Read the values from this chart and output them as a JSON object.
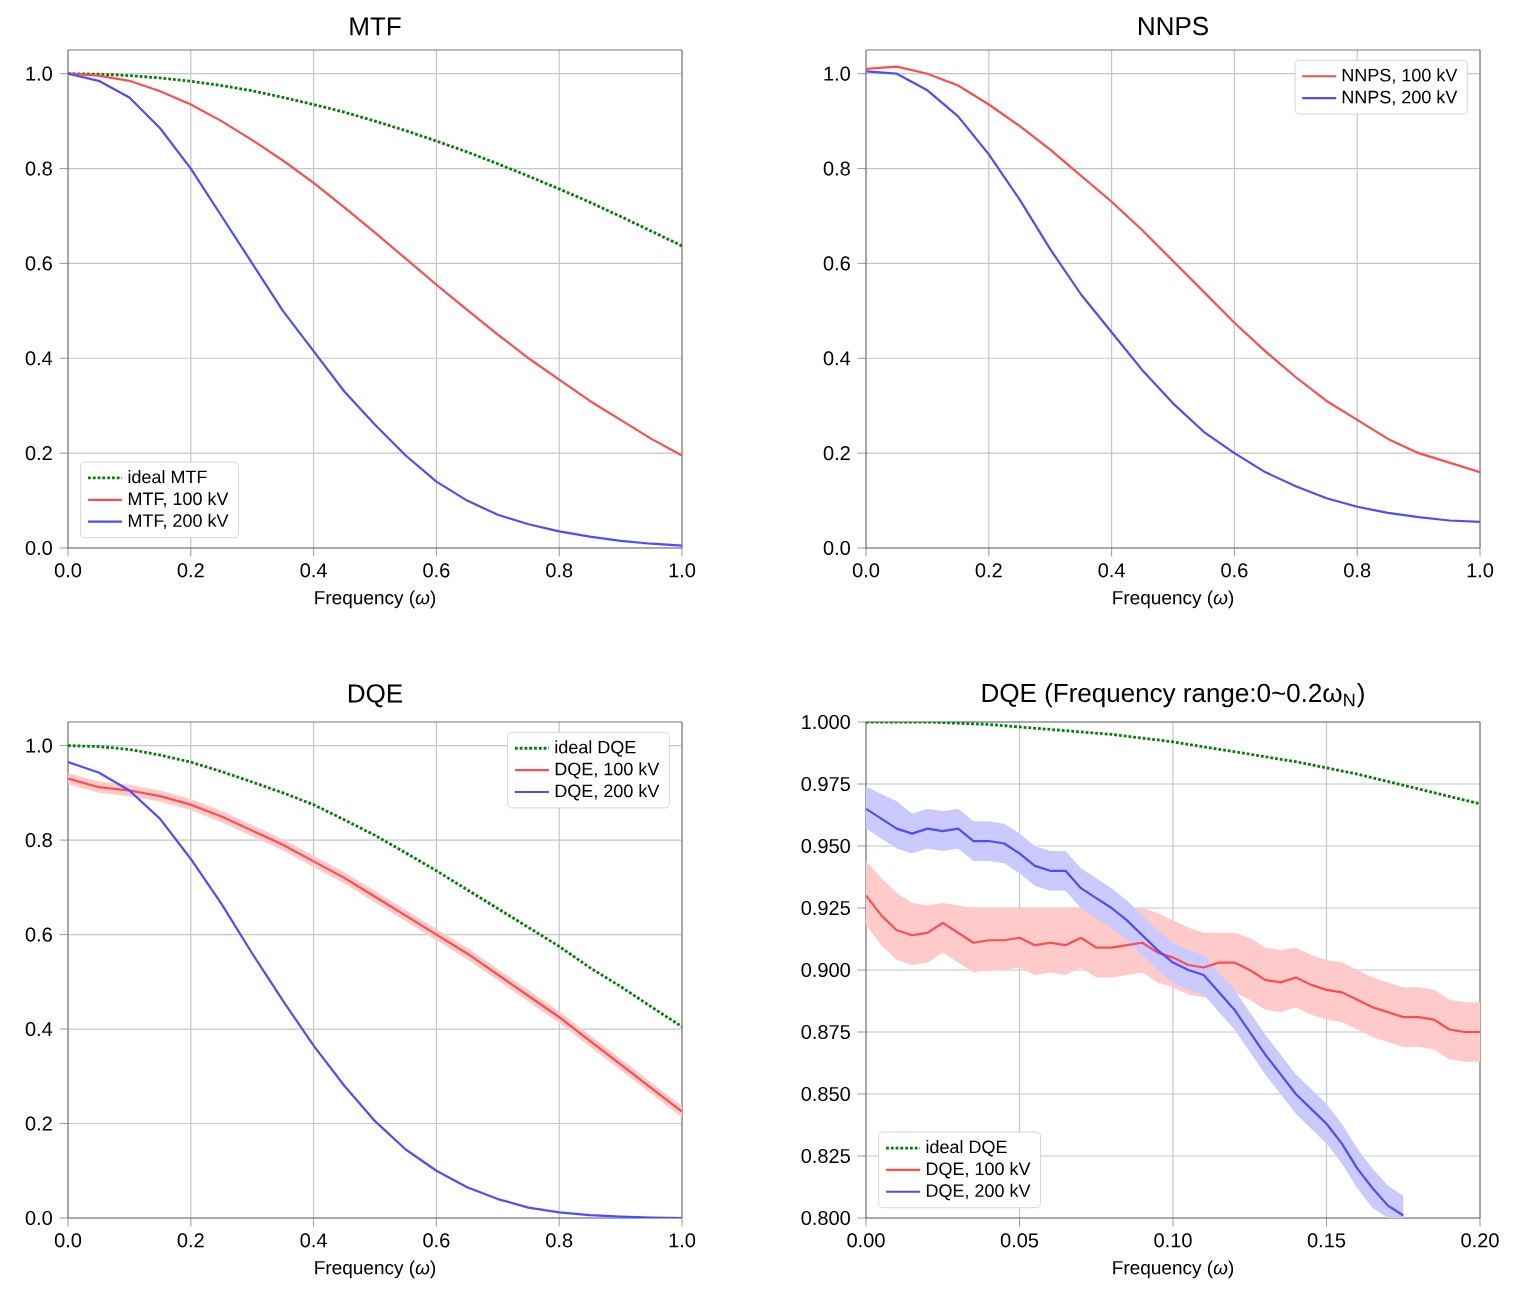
{
  "chart_data": [
    {
      "type": "line",
      "title": "MTF",
      "xlabel": "Frequency (*ω*)",
      "x": [
        0,
        0.05,
        0.1,
        0.15,
        0.2,
        0.25,
        0.3,
        0.35,
        0.4,
        0.45,
        0.5,
        0.55,
        0.6,
        0.65,
        0.7,
        0.75,
        0.8,
        0.85,
        0.9,
        0.95,
        1.0
      ],
      "series": [
        {
          "name": "ideal MTF",
          "color": "#008000",
          "line_style": "dotted",
          "values": [
            1.0,
            0.999,
            0.996,
            0.991,
            0.984,
            0.975,
            0.964,
            0.95,
            0.935,
            0.919,
            0.9,
            0.88,
            0.858,
            0.835,
            0.81,
            0.784,
            0.757,
            0.729,
            0.699,
            0.668,
            0.637
          ]
        },
        {
          "name": "MTF, 100 kV",
          "color": "#ff4d4d",
          "values": [
            1.0,
            0.996,
            0.985,
            0.963,
            0.935,
            0.9,
            0.86,
            0.817,
            0.77,
            0.718,
            0.665,
            0.61,
            0.555,
            0.502,
            0.45,
            0.4,
            0.355,
            0.31,
            0.27,
            0.23,
            0.195
          ]
        },
        {
          "name": "MTF, 200 kV",
          "color": "#4d4dff",
          "values": [
            1.0,
            0.985,
            0.95,
            0.885,
            0.8,
            0.7,
            0.6,
            0.5,
            0.415,
            0.33,
            0.26,
            0.195,
            0.14,
            0.1,
            0.07,
            0.05,
            0.035,
            0.024,
            0.015,
            0.009,
            0.005
          ]
        }
      ],
      "xlim": [
        0,
        1
      ],
      "ylim": [
        0,
        1.05
      ],
      "xticks": [
        {
          "value": 0,
          "label": "0.0"
        },
        {
          "value": 0.2,
          "label": "0.2"
        },
        {
          "value": 0.4,
          "label": "0.4"
        },
        {
          "value": 0.6,
          "label": "0.6"
        },
        {
          "value": 0.8,
          "label": "0.8"
        },
        {
          "value": 1,
          "label": "1.0"
        }
      ],
      "yticks": [
        {
          "value": 0,
          "label": "0.0"
        },
        {
          "value": 0.2,
          "label": "0.2"
        },
        {
          "value": 0.4,
          "label": "0.4"
        },
        {
          "value": 0.6,
          "label": "0.6"
        },
        {
          "value": 0.8,
          "label": "0.8"
        },
        {
          "value": 1,
          "label": "1.0"
        }
      ],
      "grid": true,
      "legend": "bottom left"
    },
    {
      "type": "line",
      "title": "NNPS",
      "xlabel": "Frequency (*ω*)",
      "x": [
        0,
        0.05,
        0.1,
        0.15,
        0.2,
        0.25,
        0.3,
        0.35,
        0.4,
        0.45,
        0.5,
        0.55,
        0.6,
        0.65,
        0.7,
        0.75,
        0.8,
        0.85,
        0.9,
        0.95,
        1.0
      ],
      "series": [
        {
          "name": "NNPS, 100 kV",
          "color": "#ff4d4d",
          "values": [
            1.01,
            1.015,
            1.0,
            0.975,
            0.935,
            0.89,
            0.84,
            0.785,
            0.73,
            0.67,
            0.605,
            0.54,
            0.475,
            0.415,
            0.36,
            0.31,
            0.27,
            0.23,
            0.2,
            0.18,
            0.16
          ]
        },
        {
          "name": "NNPS, 200 kV",
          "color": "#4d4dff",
          "values": [
            1.005,
            1.0,
            0.965,
            0.91,
            0.83,
            0.735,
            0.63,
            0.535,
            0.455,
            0.375,
            0.305,
            0.245,
            0.2,
            0.16,
            0.13,
            0.105,
            0.087,
            0.074,
            0.065,
            0.058,
            0.055
          ]
        }
      ],
      "xlim": [
        0,
        1
      ],
      "ylim": [
        0,
        1.05
      ],
      "xticks": [
        {
          "value": 0,
          "label": "0.0"
        },
        {
          "value": 0.2,
          "label": "0.2"
        },
        {
          "value": 0.4,
          "label": "0.4"
        },
        {
          "value": 0.6,
          "label": "0.6"
        },
        {
          "value": 0.8,
          "label": "0.8"
        },
        {
          "value": 1,
          "label": "1.0"
        }
      ],
      "yticks": [
        {
          "value": 0,
          "label": "0.0"
        },
        {
          "value": 0.2,
          "label": "0.2"
        },
        {
          "value": 0.4,
          "label": "0.4"
        },
        {
          "value": 0.6,
          "label": "0.6"
        },
        {
          "value": 0.8,
          "label": "0.8"
        },
        {
          "value": 1,
          "label": "1.0"
        }
      ],
      "grid": true,
      "legend": "top right"
    },
    {
      "type": "line",
      "title": "DQE",
      "xlabel": "Frequency (*ω*)",
      "x": [
        0,
        0.05,
        0.1,
        0.15,
        0.2,
        0.25,
        0.3,
        0.35,
        0.4,
        0.45,
        0.5,
        0.55,
        0.6,
        0.65,
        0.7,
        0.75,
        0.8,
        0.85,
        0.9,
        0.95,
        1.0
      ],
      "series": [
        {
          "name": "ideal DQE",
          "color": "#008000",
          "line_style": "dotted",
          "values": [
            1.0,
            0.998,
            0.992,
            0.98,
            0.965,
            0.945,
            0.923,
            0.9,
            0.875,
            0.843,
            0.81,
            0.773,
            0.735,
            0.695,
            0.655,
            0.615,
            0.575,
            0.53,
            0.49,
            0.447,
            0.405
          ]
        },
        {
          "name": "DQE, 100 kV",
          "color": "#ff4d4d",
          "values": [
            0.93,
            0.912,
            0.905,
            0.893,
            0.875,
            0.85,
            0.82,
            0.79,
            0.755,
            0.72,
            0.68,
            0.64,
            0.6,
            0.56,
            0.515,
            0.47,
            0.425,
            0.375,
            0.325,
            0.275,
            0.225
          ],
          "lower": [
            0.918,
            0.9,
            0.893,
            0.881,
            0.863,
            0.838,
            0.808,
            0.778,
            0.743,
            0.708,
            0.668,
            0.628,
            0.588,
            0.548,
            0.503,
            0.458,
            0.413,
            0.363,
            0.313,
            0.263,
            0.213
          ],
          "upper": [
            0.942,
            0.924,
            0.917,
            0.905,
            0.887,
            0.862,
            0.832,
            0.802,
            0.767,
            0.732,
            0.692,
            0.652,
            0.612,
            0.572,
            0.527,
            0.482,
            0.437,
            0.387,
            0.337,
            0.287,
            0.237
          ]
        },
        {
          "name": "DQE, 200 kV",
          "color": "#4d4dff",
          "values": [
            0.965,
            0.943,
            0.905,
            0.845,
            0.76,
            0.665,
            0.56,
            0.46,
            0.365,
            0.28,
            0.205,
            0.145,
            0.1,
            0.065,
            0.04,
            0.022,
            0.012,
            0.006,
            0.003,
            0.001,
            0.0
          ]
        }
      ],
      "xlim": [
        0,
        1
      ],
      "ylim": [
        0,
        1.05
      ],
      "xticks": [
        {
          "value": 0,
          "label": "0.0"
        },
        {
          "value": 0.2,
          "label": "0.2"
        },
        {
          "value": 0.4,
          "label": "0.4"
        },
        {
          "value": 0.6,
          "label": "0.6"
        },
        {
          "value": 0.8,
          "label": "0.8"
        },
        {
          "value": 1,
          "label": "1.0"
        }
      ],
      "yticks": [
        {
          "value": 0,
          "label": "0.0"
        },
        {
          "value": 0.2,
          "label": "0.2"
        },
        {
          "value": 0.4,
          "label": "0.4"
        },
        {
          "value": 0.6,
          "label": "0.6"
        },
        {
          "value": 0.8,
          "label": "0.8"
        },
        {
          "value": 1,
          "label": "1.0"
        }
      ],
      "grid": true,
      "legend": "top right"
    },
    {
      "type": "line",
      "title": "DQE (Frequency range:0~0.2ω$_{N}$)",
      "xlabel": "Frequency (*ω*)",
      "x": [
        0,
        0.005,
        0.01,
        0.015,
        0.02,
        0.025,
        0.03,
        0.035,
        0.04,
        0.045,
        0.05,
        0.055,
        0.06,
        0.065,
        0.07,
        0.075,
        0.08,
        0.085,
        0.09,
        0.095,
        0.1,
        0.105,
        0.11,
        0.115,
        0.12,
        0.125,
        0.13,
        0.135,
        0.14,
        0.145,
        0.15,
        0.155,
        0.16,
        0.165,
        0.17,
        0.175,
        0.18,
        0.185,
        0.19,
        0.195,
        0.2
      ],
      "series": [
        {
          "name": "ideal DQE",
          "color": "#008000",
          "line_style": "dotted",
          "x": [
            0,
            0.02,
            0.04,
            0.06,
            0.08,
            0.1,
            0.12,
            0.14,
            0.16,
            0.18,
            0.2
          ],
          "values": [
            1.0,
            1.0,
            0.999,
            0.997,
            0.995,
            0.992,
            0.988,
            0.984,
            0.979,
            0.973,
            0.967
          ]
        },
        {
          "name": "DQE, 100 kV",
          "color": "#ff4d4d",
          "values": [
            0.93,
            0.922,
            0.916,
            0.914,
            0.915,
            0.919,
            0.915,
            0.911,
            0.912,
            0.912,
            0.913,
            0.91,
            0.911,
            0.91,
            0.913,
            0.909,
            0.909,
            0.91,
            0.911,
            0.907,
            0.905,
            0.902,
            0.901,
            0.903,
            0.903,
            0.9,
            0.896,
            0.895,
            0.897,
            0.894,
            0.892,
            0.891,
            0.888,
            0.885,
            0.883,
            0.881,
            0.881,
            0.88,
            0.876,
            0.875,
            0.875
          ],
          "lower": [
            0.918,
            0.91,
            0.904,
            0.902,
            0.903,
            0.907,
            0.903,
            0.899,
            0.9,
            0.9,
            0.901,
            0.898,
            0.899,
            0.898,
            0.901,
            0.897,
            0.897,
            0.898,
            0.899,
            0.895,
            0.893,
            0.89,
            0.889,
            0.891,
            0.891,
            0.888,
            0.884,
            0.883,
            0.885,
            0.882,
            0.88,
            0.879,
            0.876,
            0.873,
            0.871,
            0.869,
            0.869,
            0.868,
            0.864,
            0.863,
            0.863
          ],
          "upper": [
            0.944,
            0.937,
            0.931,
            0.927,
            0.926,
            0.927,
            0.926,
            0.925,
            0.925,
            0.925,
            0.925,
            0.925,
            0.925,
            0.925,
            0.925,
            0.925,
            0.925,
            0.925,
            0.925,
            0.923,
            0.92,
            0.917,
            0.915,
            0.915,
            0.915,
            0.913,
            0.909,
            0.908,
            0.909,
            0.906,
            0.904,
            0.903,
            0.9,
            0.897,
            0.895,
            0.893,
            0.893,
            0.892,
            0.888,
            0.887,
            0.887
          ]
        },
        {
          "name": "DQE, 200 kV",
          "color": "#4d4dff",
          "values": [
            0.965,
            0.961,
            0.957,
            0.955,
            0.957,
            0.956,
            0.957,
            0.952,
            0.952,
            0.951,
            0.947,
            0.942,
            0.94,
            0.94,
            0.933,
            0.929,
            0.925,
            0.92,
            0.914,
            0.908,
            0.903,
            0.9,
            0.898,
            0.891,
            0.884,
            0.875,
            0.866,
            0.858,
            0.85,
            0.844,
            0.838,
            0.83,
            0.82,
            0.812,
            0.805,
            0.801,
            null,
            null,
            null,
            null,
            null
          ],
          "lower": [
            0.957,
            0.953,
            0.949,
            0.947,
            0.949,
            0.948,
            0.949,
            0.944,
            0.944,
            0.943,
            0.939,
            0.934,
            0.932,
            0.932,
            0.925,
            0.921,
            0.917,
            0.912,
            0.906,
            0.9,
            0.895,
            0.892,
            0.89,
            0.883,
            0.876,
            0.867,
            0.858,
            0.85,
            0.842,
            0.836,
            0.83,
            0.822,
            0.812,
            0.804,
            0.8,
            0.8,
            null,
            null,
            null,
            null,
            null
          ],
          "upper": [
            0.974,
            0.971,
            0.968,
            0.963,
            0.965,
            0.964,
            0.965,
            0.96,
            0.96,
            0.959,
            0.955,
            0.95,
            0.948,
            0.948,
            0.941,
            0.937,
            0.933,
            0.928,
            0.922,
            0.916,
            0.911,
            0.908,
            0.906,
            0.899,
            0.892,
            0.883,
            0.874,
            0.866,
            0.858,
            0.852,
            0.846,
            0.838,
            0.828,
            0.82,
            0.813,
            0.809,
            null,
            null,
            null,
            null,
            null
          ]
        }
      ],
      "xlim": [
        0,
        0.2
      ],
      "ylim": [
        0.8,
        1.0
      ],
      "xticks": [
        {
          "value": 0,
          "label": "0.00"
        },
        {
          "value": 0.05,
          "label": "0.05"
        },
        {
          "value": 0.1,
          "label": "0.10"
        },
        {
          "value": 0.15,
          "label": "0.15"
        },
        {
          "value": 0.2,
          "label": "0.20"
        }
      ],
      "yticks": [
        {
          "value": 0.8,
          "label": "0.800"
        },
        {
          "value": 0.825,
          "label": "0.825"
        },
        {
          "value": 0.85,
          "label": "0.850"
        },
        {
          "value": 0.875,
          "label": "0.875"
        },
        {
          "value": 0.9,
          "label": "0.900"
        },
        {
          "value": 0.925,
          "label": "0.925"
        },
        {
          "value": 0.95,
          "label": "0.950"
        },
        {
          "value": 0.975,
          "label": "0.975"
        },
        {
          "value": 1.0,
          "label": "1.000"
        }
      ],
      "grid": true,
      "legend": "bottom left"
    }
  ]
}
